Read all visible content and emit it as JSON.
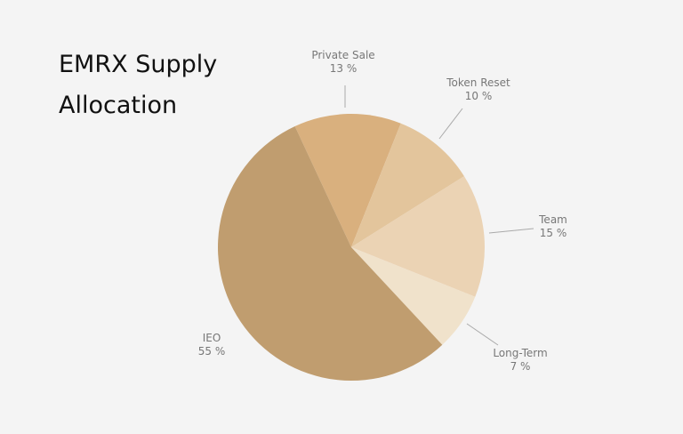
{
  "chart_data": {
    "type": "pie",
    "title": "EMRX Supply Allocation",
    "categories": [
      "Private Sale",
      "Token Reset",
      "Team",
      "Long-Term",
      "IEO"
    ],
    "values": [
      13,
      10,
      15,
      7,
      55
    ],
    "value_labels": [
      "13 %",
      "10 %",
      "15 %",
      "7 %",
      "55 %"
    ],
    "colors": [
      "#d9b07e",
      "#e3c59c",
      "#ebd3b4",
      "#f0e2cb",
      "#c09d6f"
    ]
  }
}
